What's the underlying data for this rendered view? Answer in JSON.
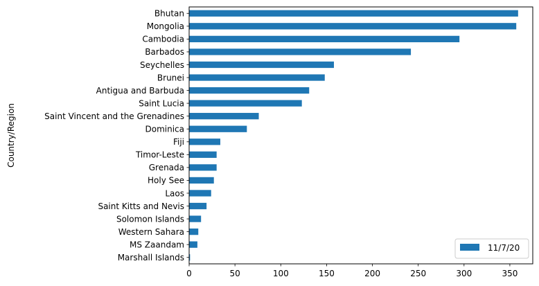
{
  "chart_data": {
    "type": "bar",
    "orientation": "horizontal",
    "title": "",
    "xlabel": "",
    "ylabel": "Country/Region",
    "categories": [
      "Bhutan",
      "Mongolia",
      "Cambodia",
      "Barbados",
      "Seychelles",
      "Brunei",
      "Antigua and Barbuda",
      "Saint Lucia",
      "Saint Vincent and the Grenadines",
      "Dominica",
      "Fiji",
      "Timor-Leste",
      "Grenada",
      "Holy See",
      "Laos",
      "Saint Kitts and Nevis",
      "Solomon Islands",
      "Western Sahara",
      "MS Zaandam",
      "Marshall Islands"
    ],
    "series": [
      {
        "name": "11/7/20",
        "color": "#1f77b4",
        "values": [
          359,
          357,
          295,
          242,
          158,
          148,
          131,
          123,
          76,
          63,
          34,
          30,
          30,
          27,
          24,
          19,
          13,
          10,
          9,
          1
        ]
      }
    ],
    "xlim": [
      0,
      375
    ],
    "xticks": [
      0,
      50,
      100,
      150,
      200,
      250,
      300,
      350
    ],
    "grid": false,
    "legend_position": "lower-right"
  }
}
